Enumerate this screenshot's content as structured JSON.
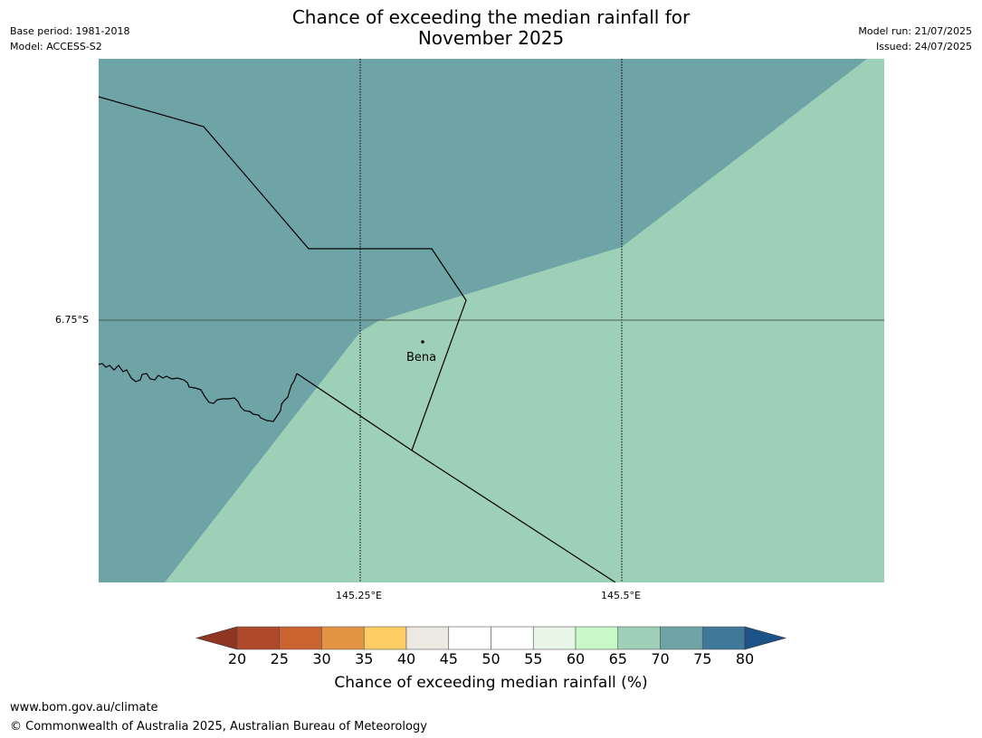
{
  "title": {
    "line1": "Chance of exceeding the median rainfall for",
    "line2": "November 2025"
  },
  "info_left": {
    "base_period": "Base period: 1981-2018",
    "model": "Model: ACCESS-S2"
  },
  "info_right": {
    "model_run": "Model run: 21/07/2025",
    "issued": "Issued: 24/07/2025"
  },
  "map": {
    "lat_label": "6.75°S",
    "lon_labels": [
      "145.25°E",
      "145.5°E"
    ],
    "place": "Bena",
    "colors": {
      "category_70_75": "#6fa4a7",
      "category_65_70": "#9ed0b8"
    }
  },
  "colorbar": {
    "ticks": [
      "20",
      "25",
      "30",
      "35",
      "40",
      "45",
      "50",
      "55",
      "60",
      "65",
      "70",
      "75",
      "80"
    ],
    "bin_colors": [
      "#b0482a",
      "#cb6331",
      "#e39443",
      "#fdcd64",
      "#ece8e2",
      "#ffffff",
      "#ffffff",
      "#e8f6e8",
      "#c8f8c8",
      "#9ed0b8",
      "#6fa4a7",
      "#3f7899"
    ],
    "low_extend_color": "#8f3522",
    "high_extend_color": "#1b5288",
    "label": "Chance of exceeding median rainfall (%)"
  },
  "footer": {
    "url": "www.bom.gov.au/climate",
    "copyright": "© Commonwealth of Australia 2025, Australian Bureau of Meteorology"
  }
}
